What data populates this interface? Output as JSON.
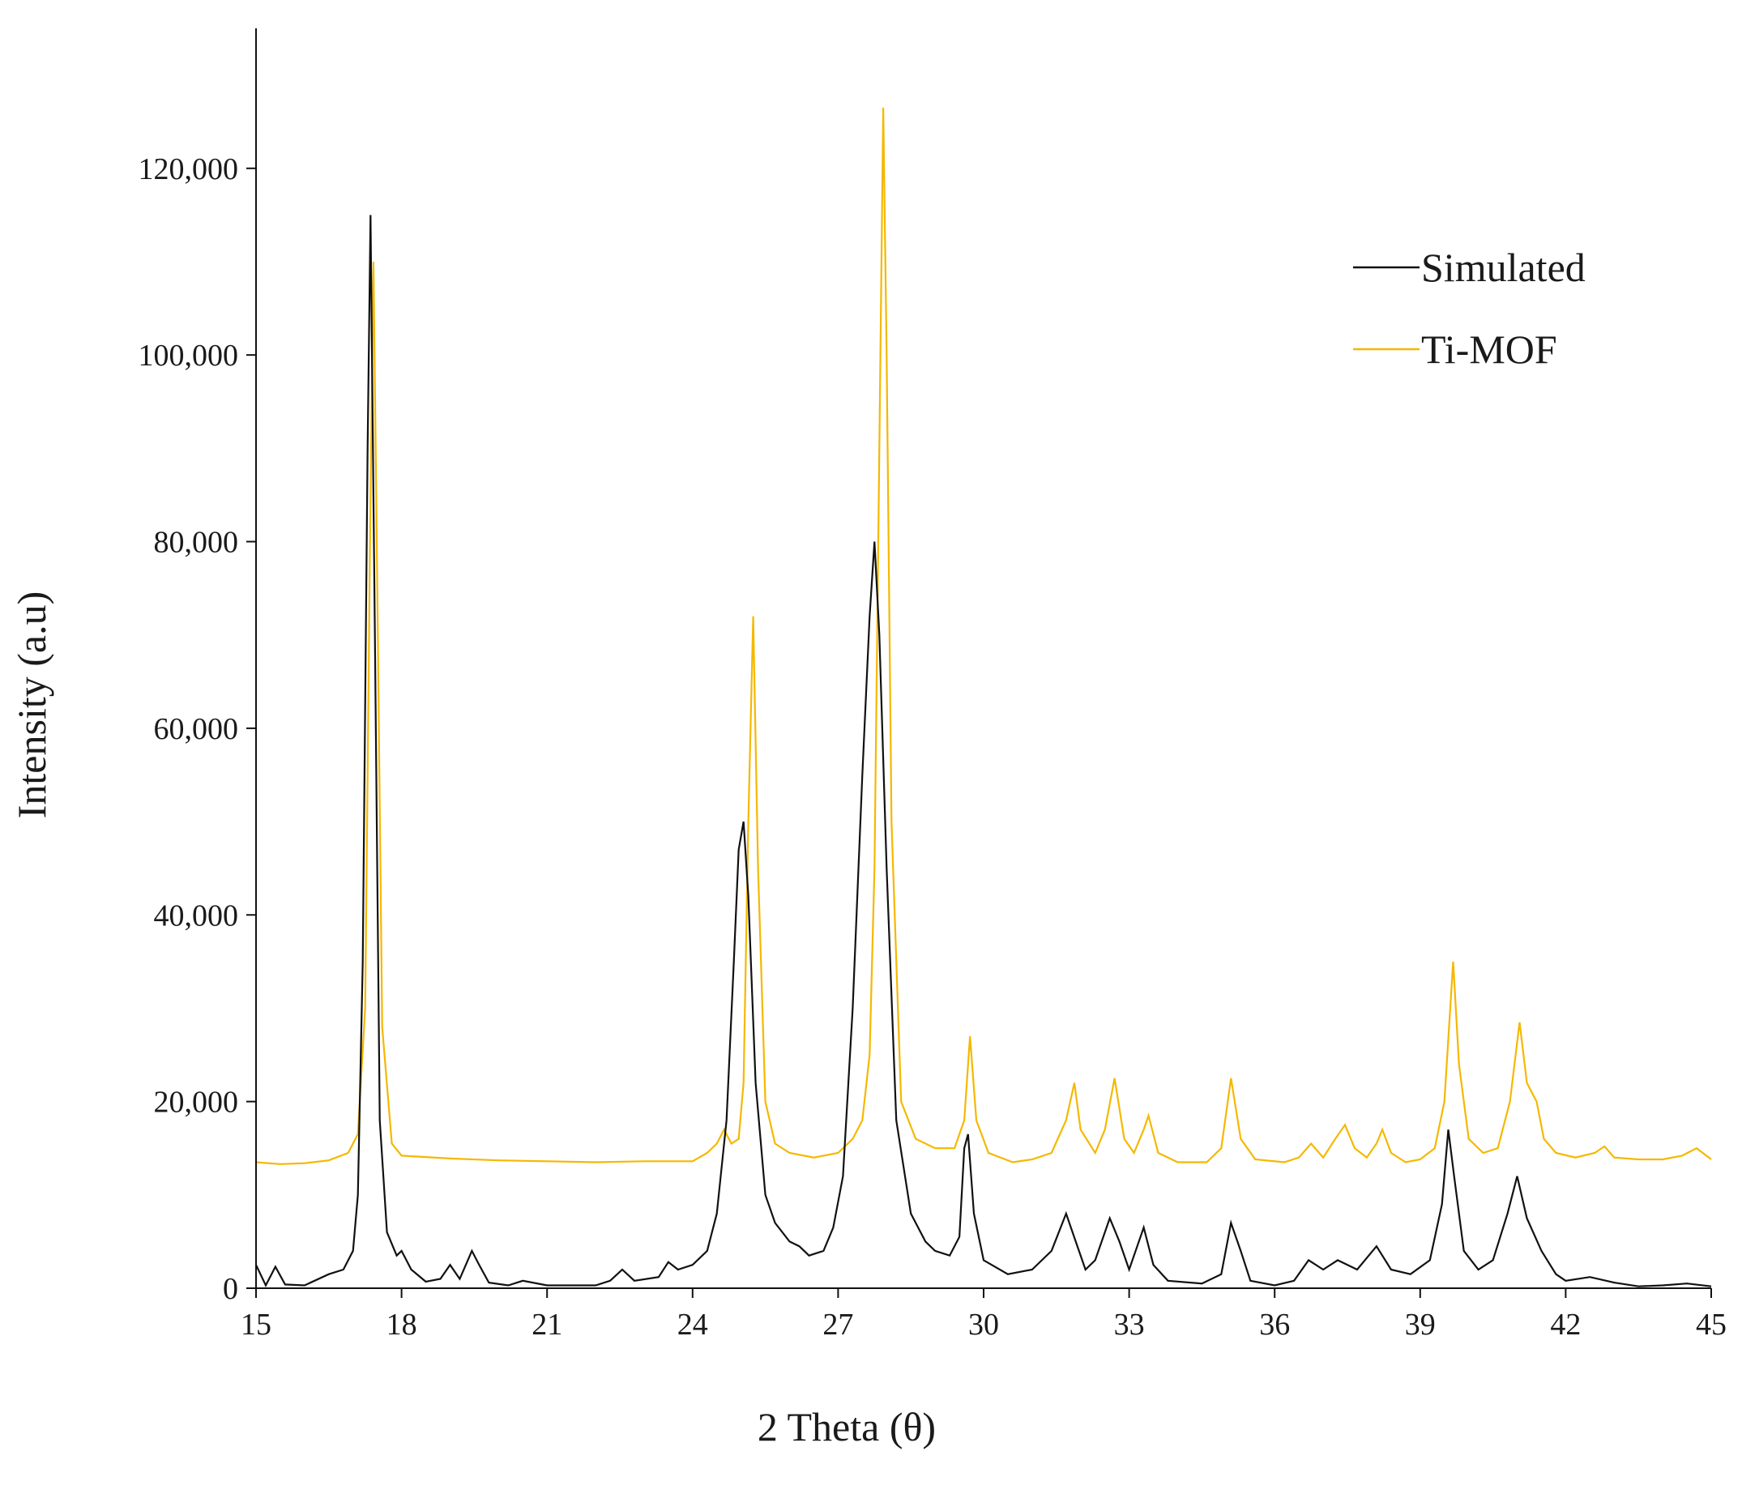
{
  "chart_data": {
    "type": "line",
    "title": "",
    "xlabel": "2 Theta (θ)",
    "ylabel": "Intensity  (a.u)",
    "xlim": [
      15,
      45
    ],
    "ylim": [
      0,
      135000
    ],
    "xticks": [
      15,
      18,
      21,
      24,
      27,
      30,
      33,
      36,
      39,
      42,
      45
    ],
    "xtick_labels": [
      "15",
      "18",
      "21",
      "24",
      "27",
      "30",
      "33",
      "36",
      "39",
      "42",
      "45"
    ],
    "yticks": [
      0,
      20000,
      40000,
      60000,
      80000,
      100000,
      120000
    ],
    "ytick_labels": [
      "0",
      "20,000",
      "40,000",
      "60,000",
      "80,000",
      "100,000",
      "120,000"
    ],
    "grid": false,
    "legend_position": "top-right",
    "series": [
      {
        "name": "Simulated",
        "color": "#111111",
        "points": [
          [
            15.0,
            2500
          ],
          [
            15.2,
            300
          ],
          [
            15.4,
            2300
          ],
          [
            15.6,
            400
          ],
          [
            16.0,
            300
          ],
          [
            16.5,
            1500
          ],
          [
            16.8,
            2000
          ],
          [
            17.0,
            4000
          ],
          [
            17.1,
            10000
          ],
          [
            17.2,
            35000
          ],
          [
            17.3,
            90000
          ],
          [
            17.36,
            115000
          ],
          [
            17.45,
            70000
          ],
          [
            17.55,
            18000
          ],
          [
            17.7,
            6000
          ],
          [
            17.9,
            3500
          ],
          [
            18.0,
            4000
          ],
          [
            18.2,
            2000
          ],
          [
            18.5,
            700
          ],
          [
            18.8,
            1000
          ],
          [
            19.0,
            2500
          ],
          [
            19.2,
            1000
          ],
          [
            19.45,
            4000
          ],
          [
            19.6,
            2500
          ],
          [
            19.8,
            600
          ],
          [
            20.2,
            300
          ],
          [
            20.5,
            800
          ],
          [
            21.0,
            300
          ],
          [
            22.0,
            300
          ],
          [
            22.3,
            800
          ],
          [
            22.55,
            2000
          ],
          [
            22.8,
            800
          ],
          [
            23.3,
            1200
          ],
          [
            23.5,
            2800
          ],
          [
            23.7,
            2000
          ],
          [
            24.0,
            2500
          ],
          [
            24.3,
            4000
          ],
          [
            24.5,
            8000
          ],
          [
            24.7,
            18000
          ],
          [
            24.85,
            35000
          ],
          [
            24.95,
            47000
          ],
          [
            25.05,
            50000
          ],
          [
            25.15,
            42000
          ],
          [
            25.3,
            22000
          ],
          [
            25.5,
            10000
          ],
          [
            25.7,
            7000
          ],
          [
            26.0,
            5000
          ],
          [
            26.2,
            4500
          ],
          [
            26.4,
            3500
          ],
          [
            26.7,
            4000
          ],
          [
            26.9,
            6500
          ],
          [
            27.1,
            12000
          ],
          [
            27.3,
            30000
          ],
          [
            27.5,
            55000
          ],
          [
            27.65,
            72000
          ],
          [
            27.75,
            80000
          ],
          [
            27.85,
            70000
          ],
          [
            28.0,
            45000
          ],
          [
            28.2,
            18000
          ],
          [
            28.5,
            8000
          ],
          [
            28.8,
            5000
          ],
          [
            29.0,
            4000
          ],
          [
            29.3,
            3500
          ],
          [
            29.5,
            5500
          ],
          [
            29.6,
            15000
          ],
          [
            29.68,
            16500
          ],
          [
            29.8,
            8000
          ],
          [
            30.0,
            3000
          ],
          [
            30.5,
            1500
          ],
          [
            31.0,
            2000
          ],
          [
            31.4,
            4000
          ],
          [
            31.7,
            8000
          ],
          [
            31.9,
            5000
          ],
          [
            32.1,
            2000
          ],
          [
            32.3,
            3000
          ],
          [
            32.6,
            7500
          ],
          [
            32.8,
            5000
          ],
          [
            33.0,
            2000
          ],
          [
            33.3,
            6500
          ],
          [
            33.5,
            2500
          ],
          [
            33.8,
            800
          ],
          [
            34.5,
            500
          ],
          [
            34.9,
            1500
          ],
          [
            35.1,
            7000
          ],
          [
            35.3,
            4000
          ],
          [
            35.5,
            800
          ],
          [
            36.0,
            300
          ],
          [
            36.4,
            800
          ],
          [
            36.7,
            3000
          ],
          [
            37.0,
            2000
          ],
          [
            37.3,
            3000
          ],
          [
            37.7,
            2000
          ],
          [
            38.1,
            4500
          ],
          [
            38.4,
            2000
          ],
          [
            38.8,
            1500
          ],
          [
            39.2,
            3000
          ],
          [
            39.45,
            9000
          ],
          [
            39.58,
            17000
          ],
          [
            39.7,
            12000
          ],
          [
            39.9,
            4000
          ],
          [
            40.2,
            2000
          ],
          [
            40.5,
            3000
          ],
          [
            40.8,
            8000
          ],
          [
            41.0,
            12000
          ],
          [
            41.2,
            7500
          ],
          [
            41.5,
            4000
          ],
          [
            41.8,
            1500
          ],
          [
            42.0,
            800
          ],
          [
            42.5,
            1200
          ],
          [
            43.0,
            600
          ],
          [
            43.5,
            200
          ],
          [
            44.0,
            300
          ],
          [
            44.5,
            500
          ],
          [
            45.0,
            200
          ]
        ]
      },
      {
        "name": "Ti-MOF",
        "color": "#f5b800",
        "points": [
          [
            15.0,
            13500
          ],
          [
            15.5,
            13300
          ],
          [
            16.0,
            13400
          ],
          [
            16.5,
            13700
          ],
          [
            16.9,
            14500
          ],
          [
            17.1,
            16500
          ],
          [
            17.25,
            30000
          ],
          [
            17.35,
            80000
          ],
          [
            17.42,
            110000
          ],
          [
            17.5,
            75000
          ],
          [
            17.6,
            28000
          ],
          [
            17.8,
            15500
          ],
          [
            18.0,
            14200
          ],
          [
            19.0,
            13900
          ],
          [
            20.0,
            13700
          ],
          [
            21.0,
            13600
          ],
          [
            22.0,
            13500
          ],
          [
            23.0,
            13600
          ],
          [
            24.0,
            13600
          ],
          [
            24.3,
            14500
          ],
          [
            24.5,
            15500
          ],
          [
            24.65,
            17000
          ],
          [
            24.8,
            15500
          ],
          [
            24.95,
            16000
          ],
          [
            25.05,
            22000
          ],
          [
            25.15,
            50000
          ],
          [
            25.25,
            72000
          ],
          [
            25.35,
            45000
          ],
          [
            25.5,
            20000
          ],
          [
            25.7,
            15500
          ],
          [
            26.0,
            14500
          ],
          [
            26.5,
            14000
          ],
          [
            27.0,
            14500
          ],
          [
            27.3,
            16000
          ],
          [
            27.5,
            18000
          ],
          [
            27.65,
            25000
          ],
          [
            27.75,
            45000
          ],
          [
            27.85,
            90000
          ],
          [
            27.93,
            126500
          ],
          [
            28.0,
            100000
          ],
          [
            28.1,
            50000
          ],
          [
            28.3,
            20000
          ],
          [
            28.6,
            16000
          ],
          [
            29.0,
            15000
          ],
          [
            29.4,
            15000
          ],
          [
            29.6,
            18000
          ],
          [
            29.72,
            27000
          ],
          [
            29.85,
            18000
          ],
          [
            30.1,
            14500
          ],
          [
            30.6,
            13500
          ],
          [
            31.0,
            13800
          ],
          [
            31.4,
            14500
          ],
          [
            31.7,
            18000
          ],
          [
            31.87,
            22000
          ],
          [
            32.0,
            17000
          ],
          [
            32.3,
            14500
          ],
          [
            32.5,
            17000
          ],
          [
            32.7,
            22500
          ],
          [
            32.9,
            16000
          ],
          [
            33.1,
            14500
          ],
          [
            33.3,
            17000
          ],
          [
            33.4,
            18500
          ],
          [
            33.6,
            14500
          ],
          [
            34.0,
            13500
          ],
          [
            34.6,
            13500
          ],
          [
            34.9,
            15000
          ],
          [
            35.1,
            22500
          ],
          [
            35.3,
            16000
          ],
          [
            35.6,
            13800
          ],
          [
            36.2,
            13500
          ],
          [
            36.5,
            14000
          ],
          [
            36.75,
            15500
          ],
          [
            37.0,
            14000
          ],
          [
            37.25,
            16000
          ],
          [
            37.45,
            17500
          ],
          [
            37.65,
            15000
          ],
          [
            37.9,
            14000
          ],
          [
            38.1,
            15500
          ],
          [
            38.22,
            17000
          ],
          [
            38.4,
            14500
          ],
          [
            38.7,
            13500
          ],
          [
            39.0,
            13800
          ],
          [
            39.3,
            15000
          ],
          [
            39.5,
            20000
          ],
          [
            39.68,
            35000
          ],
          [
            39.8,
            24000
          ],
          [
            40.0,
            16000
          ],
          [
            40.3,
            14500
          ],
          [
            40.6,
            15000
          ],
          [
            40.85,
            20000
          ],
          [
            41.05,
            28500
          ],
          [
            41.2,
            22000
          ],
          [
            41.4,
            20000
          ],
          [
            41.55,
            16000
          ],
          [
            41.8,
            14500
          ],
          [
            42.2,
            14000
          ],
          [
            42.6,
            14500
          ],
          [
            42.8,
            15200
          ],
          [
            43.0,
            14000
          ],
          [
            43.5,
            13800
          ],
          [
            44.0,
            13800
          ],
          [
            44.4,
            14200
          ],
          [
            44.7,
            15000
          ],
          [
            45.0,
            13800
          ]
        ]
      }
    ]
  }
}
